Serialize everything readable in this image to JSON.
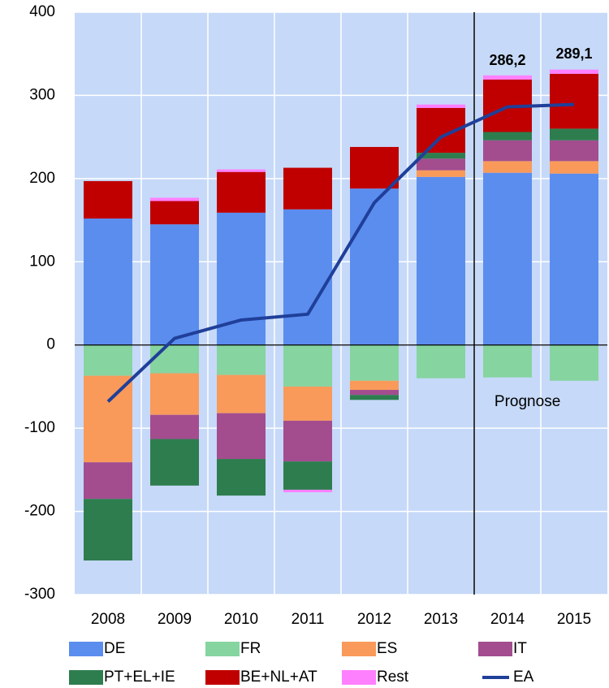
{
  "chart_data": {
    "type": "bar",
    "categories": [
      "2008",
      "2009",
      "2010",
      "2011",
      "2012",
      "2013",
      "2014",
      "2015"
    ],
    "series": [
      {
        "name": "DE",
        "color": "#5b8def",
        "values": [
          152,
          145,
          159,
          163,
          188,
          202,
          207,
          206
        ]
      },
      {
        "name": "FR",
        "color": "#86d4a0",
        "values": [
          -37,
          -34,
          -36,
          -50,
          -43,
          -40,
          -39,
          -43
        ]
      },
      {
        "name": "ES",
        "color": "#f99a5a",
        "values": [
          -104,
          -50,
          -46,
          -41,
          -11,
          8,
          14,
          15
        ]
      },
      {
        "name": "IT",
        "color": "#a34d8f",
        "values": [
          -44,
          -29,
          -55,
          -49,
          -6,
          14,
          25,
          25
        ]
      },
      {
        "name": "PT+EL+IE",
        "color": "#2e7d4f",
        "values": [
          -74,
          -56,
          -44,
          -34,
          -6,
          7,
          10,
          14
        ]
      },
      {
        "name": "BE+NL+AT",
        "color": "#c00000",
        "values": [
          45,
          28,
          49,
          50,
          50,
          54,
          63,
          66
        ]
      },
      {
        "name": "Rest",
        "color": "#ff80ff",
        "values": [
          null,
          4,
          3,
          -3,
          null,
          4,
          5,
          5
        ]
      },
      {
        "name": "EA",
        "type": "line",
        "color": "#1f3f99",
        "values": [
          -68,
          8,
          30,
          37,
          171,
          250,
          286.2,
          289.1
        ],
        "value_labels": [
          null,
          null,
          null,
          null,
          null,
          null,
          "286,2",
          "289,1"
        ]
      }
    ],
    "annotation": "Prognose",
    "ylim": [
      -300,
      400
    ],
    "yticks": [
      -300,
      -200,
      -100,
      0,
      100,
      200,
      300,
      400
    ],
    "grid": true,
    "legend": "bottom"
  }
}
